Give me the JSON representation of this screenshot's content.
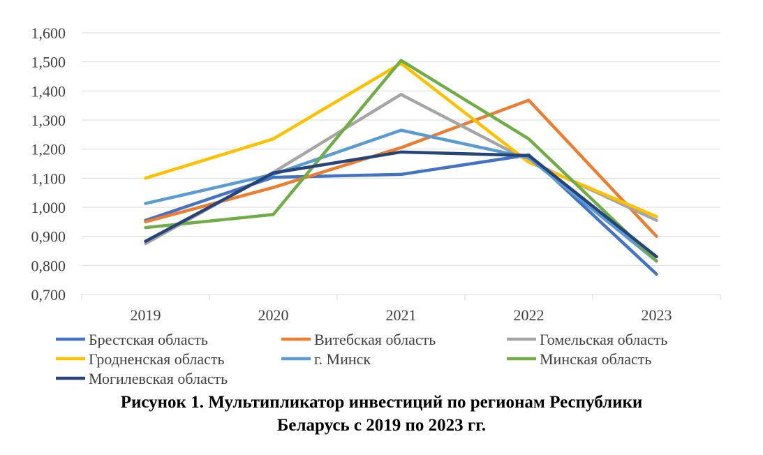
{
  "chart_data": {
    "type": "line",
    "categories": [
      "2019",
      "2020",
      "2021",
      "2022",
      "2023"
    ],
    "ylim": [
      0.7,
      1.6
    ],
    "yticks": [
      "0,700",
      "0,800",
      "0,900",
      "1,000",
      "1,100",
      "1,200",
      "1,300",
      "1,400",
      "1,500",
      "1,600"
    ],
    "grid": true,
    "legend_position": "bottom",
    "series": [
      {
        "name": "Брестская область",
        "color": "#4472C4",
        "values": [
          0.955,
          1.103,
          1.113,
          1.18,
          0.77
        ]
      },
      {
        "name": "Витебская область",
        "color": "#ED7D31",
        "values": [
          0.95,
          1.068,
          1.205,
          1.368,
          0.9
        ]
      },
      {
        "name": "Гомельская область",
        "color": "#A5A5A5",
        "values": [
          0.875,
          1.12,
          1.388,
          1.16,
          0.955
        ]
      },
      {
        "name": "Гродненская область",
        "color": "#FFC000",
        "values": [
          1.1,
          1.235,
          1.495,
          1.155,
          0.968
        ]
      },
      {
        "name": "г. Минск",
        "color": "#5B9BD5",
        "values": [
          1.013,
          1.113,
          1.265,
          1.17,
          0.815
        ]
      },
      {
        "name": "Минская область",
        "color": "#70AD47",
        "values": [
          0.93,
          0.975,
          1.505,
          1.235,
          0.815
        ]
      },
      {
        "name": "Могилевская область",
        "color": "#264478",
        "values": [
          0.883,
          1.118,
          1.19,
          1.178,
          0.83
        ]
      }
    ]
  },
  "caption": {
    "line1": "Рисунок 1. Мультипликатор инвестиций по регионам Республики",
    "line2": "Беларусь с 2019 по 2023 гг."
  }
}
